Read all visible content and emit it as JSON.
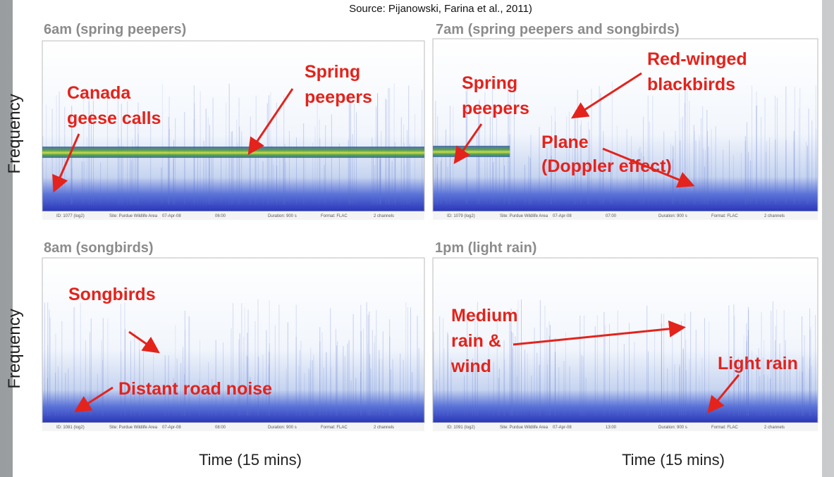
{
  "source": "Source: Pijanowski, Farina et al., 2011)",
  "y_axis_label": "Frequency",
  "x_axis_label": "Time (15 mins)",
  "panels": [
    {
      "title": "6am (spring peepers)",
      "annotations": [
        [
          "Canada",
          "geese calls"
        ],
        [
          "Spring",
          "peepers"
        ]
      ],
      "footer": [
        "ID: 1077 (log2)",
        "Site: Purdue Wildlife Area",
        "07-Apr-08",
        "06:00",
        "Duration: 900 s",
        "Format: FLAC",
        "2 channels"
      ]
    },
    {
      "title": "7am (spring peepers and songbirds)",
      "annotations": [
        [
          "Spring",
          "peepers"
        ],
        [
          "Red-winged",
          "blackbirds"
        ],
        [
          "Plane"
        ],
        [
          "(Doppler effect)"
        ]
      ],
      "footer": [
        "ID: 1079 (log2)",
        "Site: Purdue Wildlife Area",
        "07-Apr-08",
        "07:00",
        "Duration: 900 s",
        "Format: FLAC",
        "2 channels"
      ]
    },
    {
      "title": "8am (songbirds)",
      "annotations": [
        [
          "Songbirds"
        ],
        [
          "Distant road noise"
        ]
      ],
      "footer": [
        "ID: 1081 (log2)",
        "Site: Purdue Wildlife Area",
        "07-Apr-08",
        "08:00",
        "Duration: 900 s",
        "Format: FLAC",
        "2 channels"
      ]
    },
    {
      "title": "1pm (light rain)",
      "annotations": [
        [
          "Medium",
          "rain &",
          "wind"
        ],
        [
          "Light rain"
        ]
      ],
      "footer": [
        "ID: 1091 (log2)",
        "Site: Purdue Wildlife Area",
        "07-Apr-08",
        "13:00",
        "Duration: 900 s",
        "Format: FLAC",
        "2 channels"
      ]
    }
  ]
}
